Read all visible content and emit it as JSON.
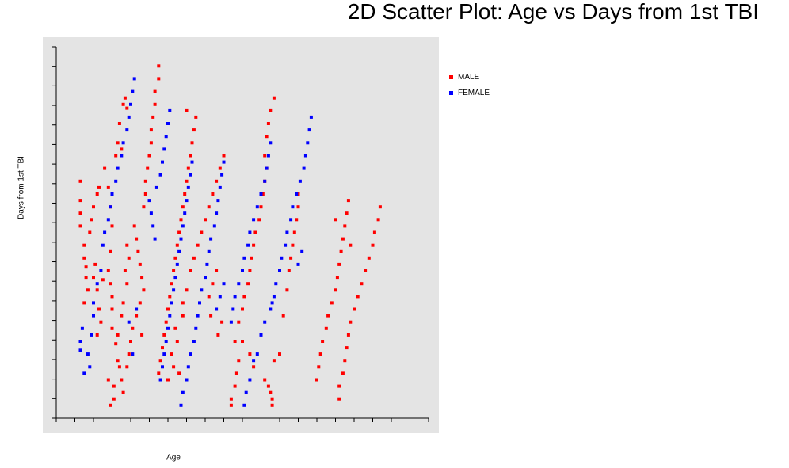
{
  "chart_data": {
    "type": "scatter",
    "title": "2D Scatter Plot: Age vs Days from 1st TBI",
    "xlabel": "Age",
    "ylabel": "Days from 1st TBI",
    "x_ticks": 20,
    "y_ticks": 19,
    "grid": false,
    "legend_position": "right",
    "colors": {
      "background": "#e4e4e4",
      "axis": "#000000"
    },
    "series": [
      {
        "name": "MALE",
        "color": "#ff0000",
        "points": [
          [
            1.3,
            18.5
          ],
          [
            1.3,
            17.0
          ],
          [
            1.3,
            16.0
          ],
          [
            1.3,
            15.0
          ],
          [
            1.5,
            13.5
          ],
          [
            1.5,
            12.5
          ],
          [
            1.6,
            11.8
          ],
          [
            1.6,
            11.0
          ],
          [
            1.7,
            10.0
          ],
          [
            1.5,
            9.0
          ],
          [
            1.8,
            14.5
          ],
          [
            1.9,
            15.5
          ],
          [
            2.0,
            16.5
          ],
          [
            2.2,
            17.5
          ],
          [
            2.3,
            18.0
          ],
          [
            2.1,
            12.0
          ],
          [
            2.0,
            11.0
          ],
          [
            2.2,
            10.0
          ],
          [
            2.3,
            8.5
          ],
          [
            2.4,
            7.5
          ],
          [
            2.2,
            6.5
          ],
          [
            2.6,
            19.5
          ],
          [
            2.8,
            18.0
          ],
          [
            2.9,
            16.5
          ],
          [
            3.0,
            15.0
          ],
          [
            2.9,
            13.0
          ],
          [
            2.8,
            11.5
          ],
          [
            2.9,
            10.5
          ],
          [
            3.0,
            9.5
          ],
          [
            3.0,
            8.5
          ],
          [
            2.5,
            10.8
          ],
          [
            3.3,
            21.5
          ],
          [
            3.5,
            21.0
          ],
          [
            3.2,
            20.5
          ],
          [
            3.4,
            23.0
          ],
          [
            3.6,
            24.5
          ],
          [
            3.7,
            25.0
          ],
          [
            3.8,
            24.2
          ],
          [
            3.8,
            13.5
          ],
          [
            3.9,
            12.5
          ],
          [
            3.7,
            11.5
          ],
          [
            3.8,
            10.5
          ],
          [
            3.6,
            9.0
          ],
          [
            3.5,
            8.0
          ],
          [
            3.3,
            6.5
          ],
          [
            3.2,
            5.8
          ],
          [
            3.0,
            7.0
          ],
          [
            3.1,
            2.5
          ],
          [
            3.1,
            1.5
          ],
          [
            2.9,
            1.0
          ],
          [
            2.8,
            3.0
          ],
          [
            3.4,
            4.0
          ],
          [
            3.5,
            3.0
          ],
          [
            3.6,
            2.0
          ],
          [
            3.3,
            4.5
          ],
          [
            4.2,
            15.0
          ],
          [
            4.3,
            14.0
          ],
          [
            4.4,
            13.0
          ],
          [
            4.5,
            12.0
          ],
          [
            4.6,
            11.0
          ],
          [
            4.7,
            10.0
          ],
          [
            4.5,
            9.0
          ],
          [
            4.3,
            8.0
          ],
          [
            4.1,
            7.0
          ],
          [
            4.0,
            6.0
          ],
          [
            3.9,
            5.0
          ],
          [
            3.8,
            4.0
          ],
          [
            4.6,
            6.5
          ],
          [
            4.7,
            16.5
          ],
          [
            4.8,
            17.5
          ],
          [
            4.8,
            18.5
          ],
          [
            4.9,
            19.5
          ],
          [
            5.0,
            20.5
          ],
          [
            5.1,
            21.5
          ],
          [
            5.1,
            22.5
          ],
          [
            5.2,
            23.5
          ],
          [
            5.3,
            24.5
          ],
          [
            5.3,
            25.5
          ],
          [
            5.5,
            26.5
          ],
          [
            5.5,
            27.5
          ],
          [
            5.5,
            3.5
          ],
          [
            5.6,
            4.5
          ],
          [
            5.7,
            5.5
          ],
          [
            5.8,
            6.5
          ],
          [
            5.9,
            7.5
          ],
          [
            6.0,
            8.5
          ],
          [
            6.1,
            9.5
          ],
          [
            6.2,
            10.5
          ],
          [
            6.3,
            11.5
          ],
          [
            6.4,
            12.5
          ],
          [
            6.5,
            13.5
          ],
          [
            6.6,
            14.5
          ],
          [
            6.7,
            15.5
          ],
          [
            6.8,
            16.5
          ],
          [
            6.9,
            17.5
          ],
          [
            7.0,
            18.5
          ],
          [
            7.1,
            19.5
          ],
          [
            7.2,
            20.5
          ],
          [
            7.3,
            21.5
          ],
          [
            7.4,
            22.5
          ],
          [
            7.5,
            23.5
          ],
          [
            7.0,
            24.0
          ],
          [
            6.2,
            5.0
          ],
          [
            6.5,
            6.0
          ],
          [
            6.4,
            7.0
          ],
          [
            6.0,
            3.0
          ],
          [
            6.3,
            4.0
          ],
          [
            6.6,
            3.5
          ],
          [
            6.8,
            8.0
          ],
          [
            6.8,
            9.0
          ],
          [
            7.0,
            10.0
          ],
          [
            7.2,
            11.5
          ],
          [
            7.4,
            12.5
          ],
          [
            7.6,
            13.5
          ],
          [
            7.8,
            14.5
          ],
          [
            8.0,
            15.5
          ],
          [
            8.2,
            16.5
          ],
          [
            8.4,
            17.5
          ],
          [
            8.6,
            18.5
          ],
          [
            8.8,
            19.5
          ],
          [
            9.0,
            20.5
          ],
          [
            8.2,
            9.5
          ],
          [
            8.4,
            10.5
          ],
          [
            8.6,
            11.5
          ],
          [
            8.7,
            6.5
          ],
          [
            8.9,
            7.5
          ],
          [
            8.3,
            8.0
          ],
          [
            9.4,
            1.0
          ],
          [
            9.4,
            1.5
          ],
          [
            9.6,
            2.5
          ],
          [
            9.7,
            3.5
          ],
          [
            9.8,
            4.5
          ],
          [
            9.6,
            6.0
          ],
          [
            9.8,
            7.5
          ],
          [
            10.0,
            8.5
          ],
          [
            10.1,
            9.5
          ],
          [
            10.3,
            10.5
          ],
          [
            10.4,
            11.5
          ],
          [
            10.5,
            12.5
          ],
          [
            10.6,
            13.5
          ],
          [
            10.7,
            14.5
          ],
          [
            10.9,
            15.5
          ],
          [
            11.0,
            16.5
          ],
          [
            11.1,
            17.5
          ],
          [
            11.2,
            18.5
          ],
          [
            11.3,
            19.5
          ],
          [
            11.2,
            20.5
          ],
          [
            11.3,
            22.0
          ],
          [
            11.4,
            23.0
          ],
          [
            11.5,
            24.0
          ],
          [
            11.7,
            25.0
          ],
          [
            10.0,
            6.0
          ],
          [
            10.4,
            5.0
          ],
          [
            10.6,
            4.0
          ],
          [
            11.2,
            3.0
          ],
          [
            11.4,
            2.5
          ],
          [
            11.5,
            2.0
          ],
          [
            11.6,
            1.5
          ],
          [
            11.6,
            1.0
          ],
          [
            11.7,
            4.5
          ],
          [
            12.0,
            5.0
          ],
          [
            12.2,
            8.0
          ],
          [
            12.4,
            10.0
          ],
          [
            12.5,
            11.5
          ],
          [
            12.6,
            12.5
          ],
          [
            12.7,
            13.5
          ],
          [
            12.8,
            14.5
          ],
          [
            12.9,
            15.5
          ],
          [
            13.0,
            16.5
          ],
          [
            13.0,
            17.5
          ],
          [
            14.0,
            3.0
          ],
          [
            14.1,
            4.0
          ],
          [
            14.2,
            5.0
          ],
          [
            14.3,
            6.0
          ],
          [
            14.5,
            7.0
          ],
          [
            14.6,
            8.0
          ],
          [
            14.8,
            9.0
          ],
          [
            15.0,
            10.0
          ],
          [
            15.1,
            11.0
          ],
          [
            15.2,
            12.0
          ],
          [
            15.3,
            13.0
          ],
          [
            15.4,
            14.0
          ],
          [
            15.5,
            15.0
          ],
          [
            15.6,
            16.0
          ],
          [
            15.7,
            17.0
          ],
          [
            15.8,
            13.5
          ],
          [
            15.0,
            15.5
          ],
          [
            15.2,
            2.5
          ],
          [
            15.2,
            1.5
          ],
          [
            15.4,
            3.5
          ],
          [
            15.5,
            4.5
          ],
          [
            15.6,
            5.5
          ],
          [
            15.7,
            6.5
          ],
          [
            15.8,
            7.5
          ],
          [
            16.0,
            8.5
          ],
          [
            16.2,
            9.5
          ],
          [
            16.4,
            10.5
          ],
          [
            16.6,
            11.5
          ],
          [
            16.8,
            12.5
          ],
          [
            17.0,
            13.5
          ],
          [
            17.1,
            14.5
          ],
          [
            17.3,
            15.5
          ],
          [
            17.4,
            16.5
          ]
        ]
      },
      {
        "name": "FEMALE",
        "color": "#0000ff",
        "points": [
          [
            1.3,
            5.3
          ],
          [
            1.3,
            6.0
          ],
          [
            1.4,
            7.0
          ],
          [
            1.5,
            3.5
          ],
          [
            1.7,
            5.0
          ],
          [
            1.8,
            4.0
          ],
          [
            1.9,
            6.5
          ],
          [
            2.0,
            8.0
          ],
          [
            2.0,
            9.0
          ],
          [
            2.2,
            10.5
          ],
          [
            2.4,
            11.5
          ],
          [
            2.5,
            13.5
          ],
          [
            2.6,
            14.5
          ],
          [
            2.8,
            15.5
          ],
          [
            2.9,
            16.5
          ],
          [
            3.0,
            17.5
          ],
          [
            3.2,
            18.5
          ],
          [
            3.3,
            19.5
          ],
          [
            3.5,
            20.5
          ],
          [
            3.6,
            21.5
          ],
          [
            3.8,
            22.5
          ],
          [
            3.9,
            23.5
          ],
          [
            4.0,
            24.5
          ],
          [
            4.1,
            25.5
          ],
          [
            4.2,
            26.5
          ],
          [
            3.9,
            7.5
          ],
          [
            4.3,
            8.5
          ],
          [
            4.1,
            5.0
          ],
          [
            5.0,
            17.0
          ],
          [
            5.1,
            16.0
          ],
          [
            5.2,
            15.0
          ],
          [
            5.3,
            14.0
          ],
          [
            5.4,
            18.0
          ],
          [
            5.6,
            19.0
          ],
          [
            5.7,
            20.0
          ],
          [
            5.8,
            21.0
          ],
          [
            5.9,
            22.0
          ],
          [
            6.0,
            23.0
          ],
          [
            6.1,
            24.0
          ],
          [
            5.6,
            3.0
          ],
          [
            5.7,
            4.0
          ],
          [
            5.8,
            5.0
          ],
          [
            5.9,
            6.0
          ],
          [
            6.0,
            7.0
          ],
          [
            6.1,
            8.0
          ],
          [
            6.2,
            9.0
          ],
          [
            6.3,
            10.0
          ],
          [
            6.4,
            11.0
          ],
          [
            6.5,
            12.0
          ],
          [
            6.6,
            13.0
          ],
          [
            6.7,
            14.0
          ],
          [
            6.8,
            15.0
          ],
          [
            6.9,
            16.0
          ],
          [
            7.0,
            17.0
          ],
          [
            7.1,
            18.0
          ],
          [
            7.2,
            19.0
          ],
          [
            7.3,
            20.0
          ],
          [
            6.7,
            1.0
          ],
          [
            6.8,
            2.0
          ],
          [
            7.0,
            3.0
          ],
          [
            7.1,
            4.0
          ],
          [
            7.2,
            5.0
          ],
          [
            7.4,
            6.0
          ],
          [
            7.5,
            7.0
          ],
          [
            7.6,
            8.0
          ],
          [
            7.7,
            9.0
          ],
          [
            7.8,
            10.0
          ],
          [
            8.0,
            11.0
          ],
          [
            8.1,
            12.0
          ],
          [
            8.2,
            13.0
          ],
          [
            8.3,
            14.0
          ],
          [
            8.5,
            15.0
          ],
          [
            8.6,
            16.0
          ],
          [
            8.7,
            17.0
          ],
          [
            8.8,
            18.0
          ],
          [
            8.9,
            19.0
          ],
          [
            9.0,
            20.0
          ],
          [
            8.6,
            8.5
          ],
          [
            8.8,
            9.5
          ],
          [
            9.0,
            10.5
          ],
          [
            9.4,
            7.5
          ],
          [
            9.5,
            8.5
          ],
          [
            9.6,
            9.5
          ],
          [
            9.8,
            10.5
          ],
          [
            10.0,
            11.5
          ],
          [
            10.1,
            12.5
          ],
          [
            10.3,
            13.5
          ],
          [
            10.4,
            14.5
          ],
          [
            10.6,
            15.5
          ],
          [
            10.8,
            16.5
          ],
          [
            11.0,
            17.5
          ],
          [
            11.2,
            18.5
          ],
          [
            11.3,
            19.5
          ],
          [
            11.4,
            20.5
          ],
          [
            11.5,
            21.5
          ],
          [
            10.1,
            1.0
          ],
          [
            10.2,
            2.0
          ],
          [
            10.4,
            3.0
          ],
          [
            10.6,
            4.5
          ],
          [
            10.8,
            5.0
          ],
          [
            11.0,
            6.5
          ],
          [
            11.2,
            7.5
          ],
          [
            11.5,
            8.5
          ],
          [
            11.7,
            9.5
          ],
          [
            11.8,
            10.5
          ],
          [
            12.0,
            11.5
          ],
          [
            12.1,
            12.5
          ],
          [
            12.3,
            13.5
          ],
          [
            12.4,
            14.5
          ],
          [
            12.6,
            15.5
          ],
          [
            12.7,
            16.5
          ],
          [
            12.9,
            17.5
          ],
          [
            13.1,
            18.5
          ],
          [
            13.3,
            19.5
          ],
          [
            13.4,
            20.5
          ],
          [
            13.5,
            21.5
          ],
          [
            13.6,
            22.5
          ],
          [
            13.7,
            23.5
          ],
          [
            11.6,
            9.0
          ],
          [
            13.0,
            12.0
          ],
          [
            13.2,
            13.0
          ]
        ]
      }
    ]
  }
}
